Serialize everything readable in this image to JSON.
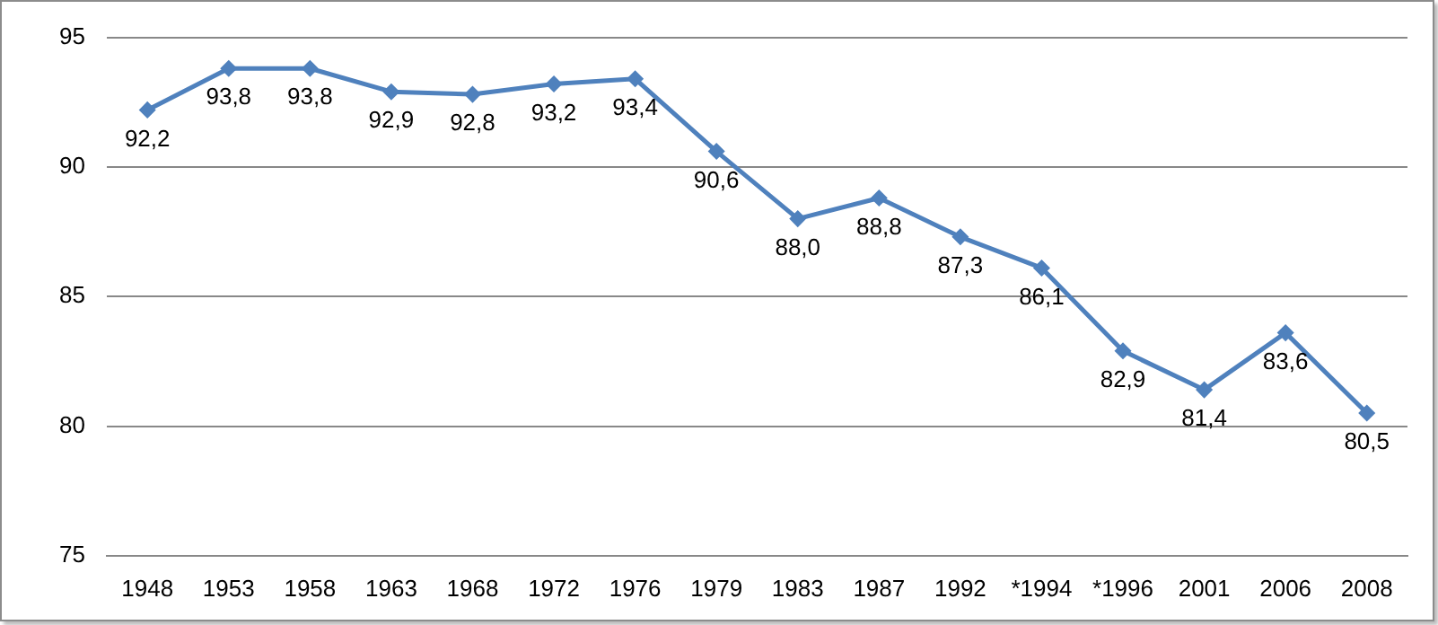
{
  "chart_data": {
    "type": "line",
    "categories": [
      "1948",
      "1953",
      "1958",
      "1963",
      "1968",
      "1972",
      "1976",
      "1979",
      "1983",
      "1987",
      "1992",
      "*1994",
      "*1996",
      "2001",
      "2006",
      "2008"
    ],
    "series": [
      {
        "color": "#4f81bd",
        "values": [
          92.2,
          93.8,
          93.8,
          92.9,
          92.8,
          93.2,
          93.4,
          90.6,
          88.0,
          88.8,
          87.3,
          86.1,
          82.9,
          81.4,
          83.6,
          80.5
        ],
        "value_labels": [
          "92,2",
          "93,8",
          "93,8",
          "92,9",
          "92,8",
          "93,2",
          "93,4",
          "90,6",
          "88,0",
          "88,8",
          "87,3",
          "86,1",
          "82,9",
          "81,4",
          "83,6",
          "80,5"
        ]
      }
    ],
    "ylim": [
      75,
      95
    ],
    "yticks": [
      75,
      80,
      85,
      90,
      95
    ],
    "grid": "y",
    "legend": false,
    "marker": "diamond",
    "line_style": "solid"
  }
}
